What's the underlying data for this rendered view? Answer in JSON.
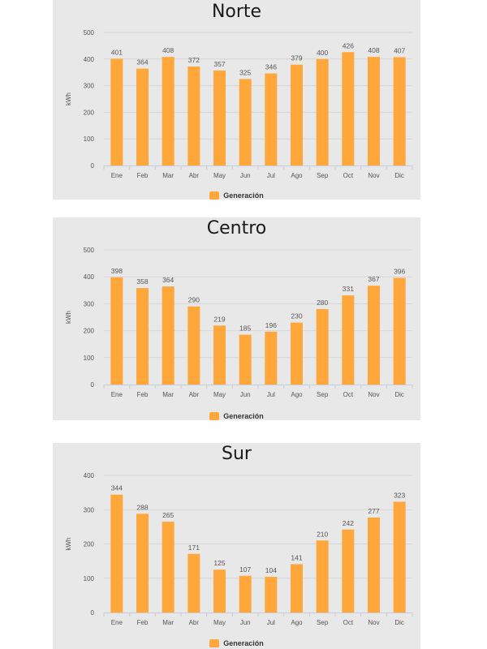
{
  "colors": {
    "bar": "#ffa73a",
    "grid": "#d6d6d6",
    "axis": "#c7ccd9"
  },
  "chart_data": [
    {
      "type": "bar",
      "title": "Norte",
      "ylabel": "kWh",
      "ylim": [
        0,
        500
      ],
      "yticks": [
        0,
        100,
        200,
        300,
        400,
        500
      ],
      "categories": [
        "Ene",
        "Feb",
        "Mar",
        "Abr",
        "May",
        "Jun",
        "Jul",
        "Ago",
        "Sep",
        "Oct",
        "Nov",
        "Dic"
      ],
      "series": [
        {
          "name": "Generación",
          "values": [
            401,
            364,
            408,
            372,
            357,
            325,
            346,
            379,
            400,
            426,
            408,
            407
          ]
        }
      ]
    },
    {
      "type": "bar",
      "title": "Centro",
      "ylabel": "kWh",
      "ylim": [
        0,
        500
      ],
      "yticks": [
        0,
        100,
        200,
        300,
        400,
        500
      ],
      "categories": [
        "Ene",
        "Feb",
        "Mar",
        "Abr",
        "May",
        "Jun",
        "Jul",
        "Ago",
        "Sep",
        "Oct",
        "Nov",
        "Dic"
      ],
      "series": [
        {
          "name": "Generación",
          "values": [
            398,
            358,
            364,
            290,
            219,
            185,
            196,
            230,
            280,
            331,
            367,
            396
          ]
        }
      ]
    },
    {
      "type": "bar",
      "title": "Sur",
      "ylabel": "kWh",
      "ylim": [
        0,
        400
      ],
      "yticks": [
        0,
        100,
        200,
        300,
        400
      ],
      "categories": [
        "Ene",
        "Feb",
        "Mar",
        "Abr",
        "May",
        "Jun",
        "Jul",
        "Ago",
        "Sep",
        "Oct",
        "Nov",
        "Dic"
      ],
      "series": [
        {
          "name": "Generación",
          "values": [
            344,
            288,
            265,
            171,
            125,
            107,
            104,
            141,
            210,
            242,
            277,
            323
          ]
        }
      ]
    }
  ]
}
